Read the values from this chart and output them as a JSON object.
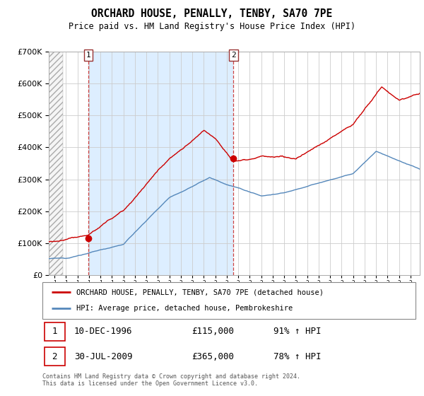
{
  "title": "ORCHARD HOUSE, PENALLY, TENBY, SA70 7PE",
  "subtitle": "Price paid vs. HM Land Registry's House Price Index (HPI)",
  "ylim": [
    0,
    700000
  ],
  "yticks": [
    0,
    100000,
    200000,
    300000,
    400000,
    500000,
    600000,
    700000
  ],
  "xlim_start": 1993.5,
  "xlim_end": 2025.8,
  "sale1_x": 1996.94,
  "sale1_y": 115000,
  "sale2_x": 2009.58,
  "sale2_y": 365000,
  "red_color": "#cc0000",
  "blue_color": "#5588bb",
  "shade_color": "#ddeeff",
  "hatch_color": "#bbbbbb",
  "grid_color": "#cccccc",
  "legend_entry1": "ORCHARD HOUSE, PENALLY, TENBY, SA70 7PE (detached house)",
  "legend_entry2": "HPI: Average price, detached house, Pembrokeshire",
  "table_row1": [
    "1",
    "10-DEC-1996",
    "£115,000",
    "91% ↑ HPI"
  ],
  "table_row2": [
    "2",
    "30-JUL-2009",
    "£365,000",
    "78% ↑ HPI"
  ],
  "footer": "Contains HM Land Registry data © Crown copyright and database right 2024.\nThis data is licensed under the Open Government Licence v3.0."
}
